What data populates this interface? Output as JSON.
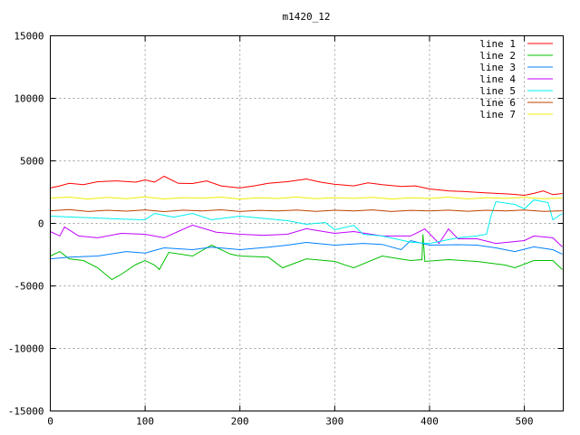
{
  "chart_data": {
    "type": "line",
    "title": "m1420_12",
    "xlabel": "",
    "ylabel": "",
    "xlim": [
      0,
      541
    ],
    "ylim": [
      -15000,
      15000
    ],
    "xticks": [
      0,
      100,
      200,
      300,
      400,
      500
    ],
    "yticks": [
      -15000,
      -10000,
      -5000,
      0,
      5000,
      10000,
      15000
    ],
    "grid": true,
    "legend_position": "top-right",
    "series": [
      {
        "name": "line 1",
        "color": "#ff0000",
        "x": [
          0,
          10,
          20,
          35,
          50,
          70,
          90,
          100,
          110,
          120,
          135,
          150,
          165,
          180,
          200,
          215,
          230,
          250,
          270,
          285,
          300,
          320,
          335,
          350,
          370,
          385,
          400,
          420,
          435,
          450,
          470,
          485,
          500,
          510,
          520,
          530,
          540
        ],
        "y": [
          2830,
          3000,
          3200,
          3100,
          3330,
          3400,
          3300,
          3480,
          3300,
          3770,
          3200,
          3190,
          3400,
          3000,
          2830,
          3000,
          3200,
          3330,
          3550,
          3300,
          3120,
          3000,
          3250,
          3100,
          2950,
          3000,
          2750,
          2600,
          2550,
          2480,
          2400,
          2350,
          2250,
          2400,
          2600,
          2300,
          2390
        ]
      },
      {
        "name": "line 2",
        "color": "#00c000",
        "x": [
          0,
          10,
          20,
          35,
          50,
          65,
          75,
          90,
          100,
          110,
          115,
          125,
          150,
          170,
          190,
          200,
          230,
          245,
          270,
          300,
          320,
          350,
          380,
          392,
          393,
          395,
          420,
          450,
          480,
          490,
          510,
          530,
          540
        ],
        "y": [
          -2610,
          -2250,
          -2830,
          -2970,
          -3550,
          -4490,
          -4060,
          -3300,
          -2970,
          -3330,
          -3690,
          -2320,
          -2610,
          -1740,
          -2460,
          -2610,
          -2700,
          -3550,
          -2830,
          -3040,
          -3550,
          -2610,
          -2970,
          -2900,
          -870,
          -3040,
          -2900,
          -3040,
          -3330,
          -3550,
          -2970,
          -2970,
          -3690
        ]
      },
      {
        "name": "line 3",
        "color": "#0080ff",
        "x": [
          0,
          20,
          50,
          80,
          100,
          120,
          150,
          170,
          200,
          230,
          250,
          270,
          300,
          330,
          350,
          370,
          380,
          400,
          430,
          450,
          470,
          490,
          510,
          530,
          540
        ],
        "y": [
          -2830,
          -2700,
          -2610,
          -2250,
          -2370,
          -1960,
          -2100,
          -1900,
          -2100,
          -1900,
          -1740,
          -1520,
          -1740,
          -1600,
          -1680,
          -2100,
          -1380,
          -1740,
          -1700,
          -1740,
          -1960,
          -2250,
          -1880,
          -2100,
          -2460
        ]
      },
      {
        "name": "line 4",
        "color": "#c000ff",
        "x": [
          0,
          10,
          15,
          30,
          50,
          75,
          100,
          120,
          150,
          175,
          200,
          225,
          250,
          270,
          300,
          320,
          350,
          380,
          395,
          410,
          420,
          430,
          450,
          470,
          500,
          510,
          530,
          540
        ],
        "y": [
          -650,
          -1010,
          -290,
          -1010,
          -1150,
          -800,
          -870,
          -1150,
          -140,
          -700,
          -870,
          -950,
          -870,
          -430,
          -800,
          -650,
          -1010,
          -1010,
          -440,
          -1600,
          -440,
          -1230,
          -1230,
          -1600,
          -1380,
          -1010,
          -1150,
          -1880
        ]
      },
      {
        "name": "line 5",
        "color": "#00eeee",
        "x": [
          0,
          25,
          50,
          75,
          100,
          110,
          130,
          150,
          170,
          200,
          225,
          250,
          270,
          290,
          300,
          320,
          330,
          350,
          380,
          400,
          430,
          450,
          460,
          465,
          470,
          490,
          500,
          510,
          525,
          530,
          540
        ],
        "y": [
          580,
          500,
          430,
          350,
          290,
          800,
          500,
          800,
          290,
          580,
          400,
          220,
          -70,
          70,
          -510,
          -160,
          -870,
          -1010,
          -1500,
          -1600,
          -1150,
          -1010,
          -870,
          650,
          1740,
          1520,
          1160,
          1880,
          1670,
          290,
          800
        ]
      },
      {
        "name": "line 6",
        "color": "#c04000",
        "x": [
          0,
          20,
          40,
          60,
          80,
          100,
          120,
          140,
          160,
          180,
          200,
          220,
          240,
          260,
          280,
          300,
          320,
          340,
          360,
          380,
          400,
          420,
          440,
          460,
          480,
          500,
          520,
          540
        ],
        "y": [
          1010,
          1100,
          950,
          1050,
          980,
          1080,
          940,
          1060,
          1000,
          1090,
          950,
          1040,
          990,
          1070,
          960,
          1050,
          1000,
          1080,
          950,
          1040,
          990,
          1060,
          970,
          1050,
          990,
          1070,
          960,
          1010
        ]
      },
      {
        "name": "line 7",
        "color": "#eeee00",
        "x": [
          0,
          20,
          40,
          60,
          80,
          100,
          120,
          140,
          160,
          180,
          200,
          220,
          240,
          260,
          280,
          300,
          320,
          340,
          360,
          380,
          400,
          420,
          440,
          460,
          480,
          500,
          520,
          540
        ],
        "y": [
          2030,
          2100,
          1950,
          2080,
          1980,
          2120,
          1960,
          2060,
          2010,
          2100,
          1950,
          2050,
          1990,
          2110,
          1970,
          2060,
          2000,
          2090,
          1950,
          2050,
          1990,
          2100,
          1960,
          2060,
          2000,
          2080,
          1970,
          2030
        ]
      }
    ]
  }
}
